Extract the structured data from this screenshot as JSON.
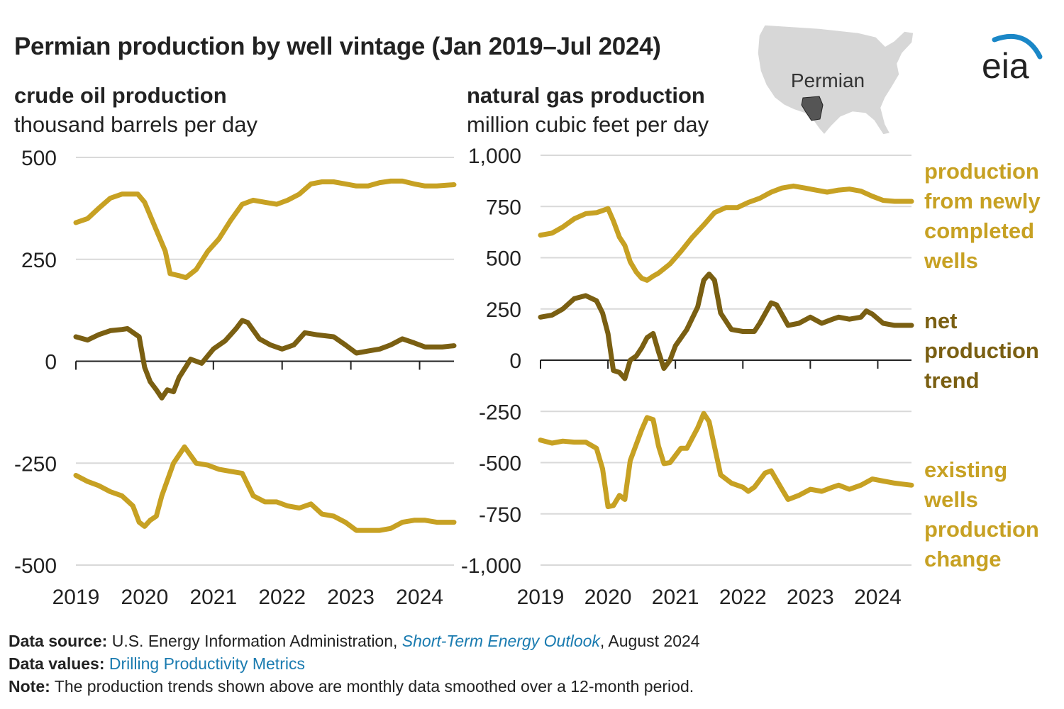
{
  "title": "Permian production by well vintage (Jan 2019–Jul 2024)",
  "colors": {
    "newly_completed": "#c7a123",
    "net_trend": "#7a5f12",
    "existing": "#c7a123",
    "grid": "#d9d9d9",
    "axis": "#222222"
  },
  "map": {
    "label": "Permian"
  },
  "logo": {
    "text": "eia"
  },
  "series_labels": {
    "newly_completed": [
      "production",
      "from newly",
      "completed",
      "wells"
    ],
    "net_trend": [
      "net",
      "production",
      "trend"
    ],
    "existing": [
      "existing",
      "wells",
      "production",
      "change"
    ]
  },
  "footer": {
    "source_label": "Data source:",
    "source_text": "U.S. Energy Information Administration, ",
    "source_link": "Short-Term Energy Outlook",
    "source_tail": ", August 2024",
    "values_label": "Data values:",
    "values_link": "Drilling Productivity Metrics",
    "note_label": "Note:",
    "note_text": "The production trends shown above are monthly data smoothed over a 12-month period."
  },
  "chart_data": [
    {
      "type": "line",
      "title": "crude oil production",
      "subtitle": "thousand barrels per day",
      "xlim": [
        2019.0,
        2024.5
      ],
      "x_ticks": [
        2019,
        2020,
        2021,
        2022,
        2023,
        2024
      ],
      "y_ticks": [
        500,
        250,
        0,
        -250,
        -500
      ],
      "y_tick_labels": [
        "500",
        "250",
        "0",
        "-250",
        "-500"
      ],
      "ylim": [
        -500,
        500
      ],
      "grid": true,
      "series": [
        {
          "key": "newly_completed",
          "points": [
            [
              2019.0,
              340
            ],
            [
              2019.17,
              350
            ],
            [
              2019.33,
              375
            ],
            [
              2019.5,
              400
            ],
            [
              2019.67,
              410
            ],
            [
              2019.9,
              410
            ],
            [
              2020.0,
              390
            ],
            [
              2020.15,
              330
            ],
            [
              2020.3,
              270
            ],
            [
              2020.37,
              215
            ],
            [
              2020.5,
              210
            ],
            [
              2020.6,
              205
            ],
            [
              2020.75,
              225
            ],
            [
              2020.92,
              270
            ],
            [
              2021.08,
              300
            ],
            [
              2021.25,
              345
            ],
            [
              2021.42,
              385
            ],
            [
              2021.58,
              395
            ],
            [
              2021.75,
              390
            ],
            [
              2021.92,
              385
            ],
            [
              2022.08,
              395
            ],
            [
              2022.25,
              410
            ],
            [
              2022.42,
              435
            ],
            [
              2022.58,
              440
            ],
            [
              2022.75,
              440
            ],
            [
              2022.92,
              435
            ],
            [
              2023.08,
              430
            ],
            [
              2023.25,
              430
            ],
            [
              2023.42,
              438
            ],
            [
              2023.58,
              442
            ],
            [
              2023.75,
              442
            ],
            [
              2023.92,
              435
            ],
            [
              2024.08,
              430
            ],
            [
              2024.25,
              430
            ],
            [
              2024.5,
              433
            ]
          ]
        },
        {
          "key": "net_trend",
          "points": [
            [
              2019.0,
              60
            ],
            [
              2019.17,
              52
            ],
            [
              2019.33,
              65
            ],
            [
              2019.5,
              75
            ],
            [
              2019.67,
              78
            ],
            [
              2019.75,
              80
            ],
            [
              2019.92,
              60
            ],
            [
              2020.0,
              -15
            ],
            [
              2020.08,
              -50
            ],
            [
              2020.17,
              -70
            ],
            [
              2020.25,
              -90
            ],
            [
              2020.33,
              -70
            ],
            [
              2020.42,
              -75
            ],
            [
              2020.5,
              -40
            ],
            [
              2020.67,
              5
            ],
            [
              2020.83,
              -5
            ],
            [
              2021.0,
              30
            ],
            [
              2021.17,
              50
            ],
            [
              2021.33,
              80
            ],
            [
              2021.42,
              100
            ],
            [
              2021.5,
              95
            ],
            [
              2021.67,
              55
            ],
            [
              2021.83,
              40
            ],
            [
              2022.0,
              30
            ],
            [
              2022.17,
              40
            ],
            [
              2022.33,
              70
            ],
            [
              2022.5,
              65
            ],
            [
              2022.75,
              60
            ],
            [
              2022.92,
              40
            ],
            [
              2023.08,
              20
            ],
            [
              2023.25,
              25
            ],
            [
              2023.42,
              30
            ],
            [
              2023.58,
              40
            ],
            [
              2023.75,
              55
            ],
            [
              2023.92,
              45
            ],
            [
              2024.08,
              35
            ],
            [
              2024.33,
              35
            ],
            [
              2024.5,
              38
            ]
          ]
        },
        {
          "key": "existing",
          "points": [
            [
              2019.0,
              -280
            ],
            [
              2019.17,
              -295
            ],
            [
              2019.33,
              -305
            ],
            [
              2019.5,
              -320
            ],
            [
              2019.67,
              -330
            ],
            [
              2019.83,
              -355
            ],
            [
              2019.92,
              -395
            ],
            [
              2020.0,
              -405
            ],
            [
              2020.08,
              -390
            ],
            [
              2020.17,
              -380
            ],
            [
              2020.25,
              -330
            ],
            [
              2020.42,
              -250
            ],
            [
              2020.58,
              -210
            ],
            [
              2020.75,
              -250
            ],
            [
              2020.92,
              -255
            ],
            [
              2021.08,
              -265
            ],
            [
              2021.25,
              -270
            ],
            [
              2021.42,
              -275
            ],
            [
              2021.58,
              -330
            ],
            [
              2021.75,
              -345
            ],
            [
              2021.92,
              -345
            ],
            [
              2022.08,
              -355
            ],
            [
              2022.25,
              -360
            ],
            [
              2022.42,
              -350
            ],
            [
              2022.58,
              -375
            ],
            [
              2022.75,
              -380
            ],
            [
              2022.92,
              -395
            ],
            [
              2023.08,
              -415
            ],
            [
              2023.25,
              -415
            ],
            [
              2023.42,
              -415
            ],
            [
              2023.58,
              -410
            ],
            [
              2023.75,
              -395
            ],
            [
              2023.92,
              -390
            ],
            [
              2024.08,
              -390
            ],
            [
              2024.25,
              -395
            ],
            [
              2024.5,
              -395
            ]
          ]
        }
      ]
    },
    {
      "type": "line",
      "title": "natural gas production",
      "subtitle": "million cubic feet per day",
      "xlim": [
        2019.0,
        2024.5
      ],
      "x_ticks": [
        2019,
        2020,
        2021,
        2022,
        2023,
        2024
      ],
      "y_ticks": [
        1000,
        750,
        500,
        250,
        0,
        -250,
        -500,
        -750,
        -1000
      ],
      "y_tick_labels": [
        "1,000",
        "750",
        "500",
        "250",
        "0",
        "-250",
        "-500",
        "-750",
        "-1,000"
      ],
      "ylim": [
        -1000,
        1000
      ],
      "grid": true,
      "series": [
        {
          "key": "newly_completed",
          "points": [
            [
              2019.0,
              610
            ],
            [
              2019.17,
              620
            ],
            [
              2019.33,
              650
            ],
            [
              2019.5,
              690
            ],
            [
              2019.67,
              715
            ],
            [
              2019.83,
              720
            ],
            [
              2019.92,
              730
            ],
            [
              2020.0,
              740
            ],
            [
              2020.08,
              680
            ],
            [
              2020.17,
              600
            ],
            [
              2020.25,
              560
            ],
            [
              2020.33,
              480
            ],
            [
              2020.42,
              430
            ],
            [
              2020.5,
              400
            ],
            [
              2020.58,
              390
            ],
            [
              2020.67,
              410
            ],
            [
              2020.75,
              425
            ],
            [
              2020.92,
              470
            ],
            [
              2021.08,
              530
            ],
            [
              2021.25,
              600
            ],
            [
              2021.42,
              660
            ],
            [
              2021.58,
              720
            ],
            [
              2021.75,
              745
            ],
            [
              2021.92,
              745
            ],
            [
              2022.08,
              770
            ],
            [
              2022.25,
              790
            ],
            [
              2022.42,
              820
            ],
            [
              2022.58,
              840
            ],
            [
              2022.75,
              850
            ],
            [
              2022.92,
              840
            ],
            [
              2023.08,
              830
            ],
            [
              2023.25,
              820
            ],
            [
              2023.42,
              830
            ],
            [
              2023.58,
              835
            ],
            [
              2023.75,
              825
            ],
            [
              2023.92,
              800
            ],
            [
              2024.08,
              780
            ],
            [
              2024.25,
              775
            ],
            [
              2024.5,
              775
            ]
          ]
        },
        {
          "key": "net_trend",
          "points": [
            [
              2019.0,
              210
            ],
            [
              2019.17,
              220
            ],
            [
              2019.33,
              250
            ],
            [
              2019.5,
              300
            ],
            [
              2019.67,
              315
            ],
            [
              2019.83,
              290
            ],
            [
              2019.92,
              230
            ],
            [
              2020.0,
              130
            ],
            [
              2020.08,
              -50
            ],
            [
              2020.17,
              -60
            ],
            [
              2020.25,
              -90
            ],
            [
              2020.33,
              0
            ],
            [
              2020.42,
              20
            ],
            [
              2020.5,
              60
            ],
            [
              2020.58,
              110
            ],
            [
              2020.67,
              130
            ],
            [
              2020.75,
              40
            ],
            [
              2020.83,
              -40
            ],
            [
              2020.92,
              0
            ],
            [
              2021.0,
              70
            ],
            [
              2021.17,
              150
            ],
            [
              2021.33,
              260
            ],
            [
              2021.42,
              390
            ],
            [
              2021.5,
              420
            ],
            [
              2021.58,
              390
            ],
            [
              2021.67,
              230
            ],
            [
              2021.83,
              150
            ],
            [
              2022.0,
              140
            ],
            [
              2022.17,
              140
            ],
            [
              2022.25,
              180
            ],
            [
              2022.42,
              280
            ],
            [
              2022.5,
              270
            ],
            [
              2022.67,
              170
            ],
            [
              2022.83,
              180
            ],
            [
              2023.0,
              210
            ],
            [
              2023.17,
              180
            ],
            [
              2023.33,
              200
            ],
            [
              2023.42,
              210
            ],
            [
              2023.58,
              200
            ],
            [
              2023.75,
              210
            ],
            [
              2023.83,
              240
            ],
            [
              2023.92,
              225
            ],
            [
              2024.08,
              180
            ],
            [
              2024.25,
              170
            ],
            [
              2024.5,
              170
            ]
          ]
        },
        {
          "key": "existing",
          "points": [
            [
              2019.0,
              -390
            ],
            [
              2019.17,
              -405
            ],
            [
              2019.33,
              -395
            ],
            [
              2019.5,
              -400
            ],
            [
              2019.67,
              -400
            ],
            [
              2019.83,
              -430
            ],
            [
              2019.92,
              -530
            ],
            [
              2020.0,
              -715
            ],
            [
              2020.08,
              -710
            ],
            [
              2020.17,
              -660
            ],
            [
              2020.25,
              -680
            ],
            [
              2020.33,
              -490
            ],
            [
              2020.5,
              -340
            ],
            [
              2020.58,
              -280
            ],
            [
              2020.67,
              -290
            ],
            [
              2020.75,
              -420
            ],
            [
              2020.83,
              -505
            ],
            [
              2020.92,
              -500
            ],
            [
              2021.08,
              -430
            ],
            [
              2021.17,
              -430
            ],
            [
              2021.33,
              -330
            ],
            [
              2021.42,
              -260
            ],
            [
              2021.5,
              -300
            ],
            [
              2021.67,
              -560
            ],
            [
              2021.83,
              -600
            ],
            [
              2022.0,
              -620
            ],
            [
              2022.08,
              -640
            ],
            [
              2022.17,
              -620
            ],
            [
              2022.33,
              -550
            ],
            [
              2022.42,
              -540
            ],
            [
              2022.58,
              -630
            ],
            [
              2022.67,
              -680
            ],
            [
              2022.83,
              -660
            ],
            [
              2023.0,
              -630
            ],
            [
              2023.17,
              -640
            ],
            [
              2023.33,
              -620
            ],
            [
              2023.42,
              -610
            ],
            [
              2023.58,
              -630
            ],
            [
              2023.75,
              -610
            ],
            [
              2023.92,
              -580
            ],
            [
              2024.08,
              -590
            ],
            [
              2024.25,
              -600
            ],
            [
              2024.5,
              -610
            ]
          ]
        }
      ]
    }
  ]
}
